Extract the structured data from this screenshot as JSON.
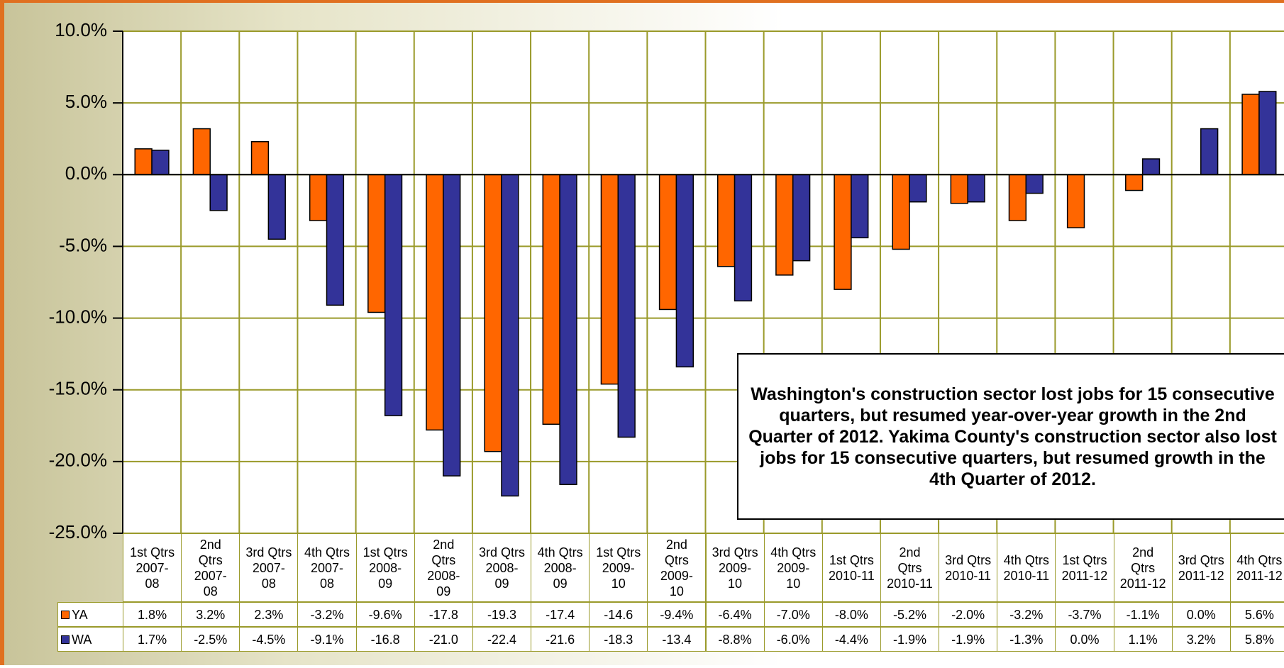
{
  "chart_data": {
    "type": "bar",
    "annotation": "Washington's construction sector lost jobs for 15 consecutive quarters, but resumed year-over-year growth in the 2nd Quarter of 2012. Yakima County's construction sector also lost jobs for 15 consecutive quarters, but resumed growth in the 4th Quarter of 2012.",
    "categories": [
      "1st Qtrs 2007-08",
      "2nd Qtrs 2007-08",
      "3rd Qtrs 2007-08",
      "4th Qtrs 2007-08",
      "1st Qtrs 2008-09",
      "2nd Qtrs 2008-09",
      "3rd Qtrs 2008-09",
      "4th Qtrs 2008-09",
      "1st Qtrs 2009-10",
      "2nd Qtrs 2009-10",
      "3rd Qtrs 2009-10",
      "4th Qtrs 2009-10",
      "1st Qtrs 2010-11",
      "2nd Qtrs 2010-11",
      "3rd Qtrs 2010-11",
      "4th Qtrs 2010-11",
      "1st Qtrs 2011-12",
      "2nd Qtrs 2011-12",
      "3rd Qtrs 2011-12",
      "4th Qtrs 2011-12"
    ],
    "series": [
      {
        "name": "YA",
        "color": "#ff6600",
        "values": [
          1.8,
          3.2,
          2.3,
          -3.2,
          -9.6,
          -17.8,
          -19.3,
          -17.4,
          -14.6,
          -9.4,
          -6.4,
          -7.0,
          -8.0,
          -5.2,
          -2.0,
          -3.2,
          -3.7,
          -1.1,
          0.0,
          5.6
        ],
        "value_labels": [
          "1.8%",
          "3.2%",
          "2.3%",
          "-3.2%",
          "-9.6%",
          "-17.8",
          "-19.3",
          "-17.4",
          "-14.6",
          "-9.4%",
          "-6.4%",
          "-7.0%",
          "-8.0%",
          "-5.2%",
          "-2.0%",
          "-3.2%",
          "-3.7%",
          "-1.1%",
          "0.0%",
          "5.6%"
        ]
      },
      {
        "name": "WA",
        "color": "#333399",
        "values": [
          1.7,
          -2.5,
          -4.5,
          -9.1,
          -16.8,
          -21.0,
          -22.4,
          -21.6,
          -18.3,
          -13.4,
          -8.8,
          -6.0,
          -4.4,
          -1.9,
          -1.9,
          -1.3,
          0.0,
          1.1,
          3.2,
          5.8
        ],
        "value_labels": [
          "1.7%",
          "-2.5%",
          "-4.5%",
          "-9.1%",
          "-16.8",
          "-21.0",
          "-22.4",
          "-21.6",
          "-18.3",
          "-13.4",
          "-8.8%",
          "-6.0%",
          "-4.4%",
          "-1.9%",
          "-1.9%",
          "-1.3%",
          "0.0%",
          "1.1%",
          "3.2%",
          "5.8%"
        ]
      }
    ],
    "ylim": [
      -25,
      10
    ],
    "yticks": [
      {
        "value": 10,
        "label": "10.0%"
      },
      {
        "value": 5,
        "label": "5.0%"
      },
      {
        "value": 0,
        "label": "0.0%"
      },
      {
        "value": -5,
        "label": "-5.0%"
      },
      {
        "value": -10,
        "label": "-10.0%"
      },
      {
        "value": -15,
        "label": "-15.0%"
      },
      {
        "value": -20,
        "label": "-20.0%"
      },
      {
        "value": -25,
        "label": "-25.0%"
      }
    ],
    "grid": true
  }
}
